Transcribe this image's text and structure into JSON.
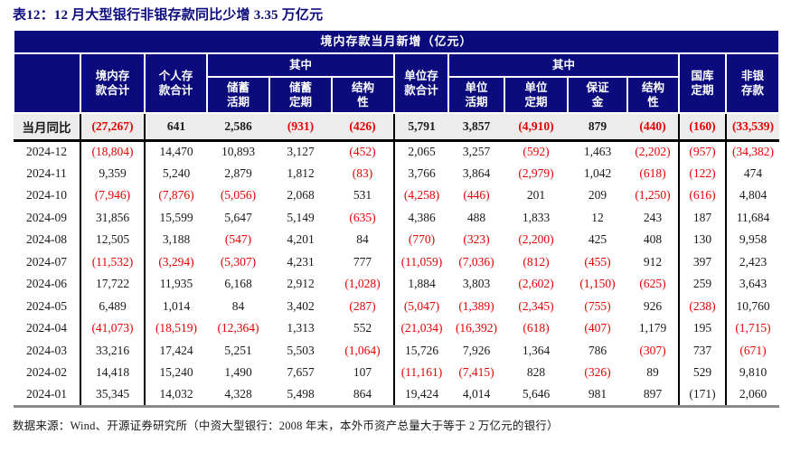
{
  "title": "表12：12 月大型银行非银存款同比少增 3.35 万亿元",
  "colors": {
    "header_navy": "#0b0b7e",
    "negative_red": "#e60000",
    "yoy_row_bg": "#ececec",
    "title_navy": "#0b0b7e",
    "bottom_border_gray": "#8c8c8c"
  },
  "table": {
    "band_title": "境内存款当月新增（亿元）",
    "header": {
      "domestic_total": "境内存\n款合计",
      "personal_total": "个人存\n款合计",
      "among_personal": "其中",
      "savings_demand": "储蓄\n活期",
      "savings_time": "储蓄\n定期",
      "structural_personal": "结构\n性",
      "corporate_total": "单位存\n款合计",
      "among_corporate": "其中",
      "corp_demand": "单位\n活期",
      "corp_time": "单位\n定期",
      "margin_deposit": "保证\n金",
      "structural_corp": "结构\n性",
      "treasury_time": "国库\n定期",
      "nonbank": "非银\n存款"
    },
    "yoy_row": {
      "label": "当月同比",
      "values": [
        "(27,267)",
        "641",
        "2,586",
        "(931)",
        "(426)",
        "5,791",
        "3,857",
        "(4,910)",
        "879",
        "(440)",
        "(160)",
        "(33,539)"
      ]
    },
    "rows": [
      {
        "label": "2024-12",
        "values": [
          "(18,804)",
          "14,470",
          "10,893",
          "3,127",
          "(452)",
          "2,065",
          "3,257",
          "(592)",
          "1,463",
          "(2,202)",
          "(957)",
          "(34,382)"
        ]
      },
      {
        "label": "2024-11",
        "values": [
          "9,359",
          "5,240",
          "2,879",
          "1,812",
          "(83)",
          "3,766",
          "3,864",
          "(2,979)",
          "1,042",
          "(618)",
          "(122)",
          "474"
        ]
      },
      {
        "label": "2024-10",
        "values": [
          "(7,946)",
          "(7,876)",
          "(5,056)",
          "2,068",
          "531",
          "(4,258)",
          "(446)",
          "201",
          "209",
          "(1,250)",
          "(616)",
          "4,804"
        ]
      },
      {
        "label": "2024-09",
        "values": [
          "31,856",
          "15,599",
          "5,647",
          "5,149",
          "(635)",
          "4,386",
          "488",
          "1,833",
          "12",
          "243",
          "187",
          "11,684"
        ]
      },
      {
        "label": "2024-08",
        "values": [
          "12,505",
          "3,188",
          "(547)",
          "4,201",
          "84",
          "(770)",
          "(323)",
          "(2,200)",
          "425",
          "408",
          "130",
          "9,958"
        ]
      },
      {
        "label": "2024-07",
        "values": [
          "(11,532)",
          "(3,294)",
          "(5,307)",
          "4,231",
          "777",
          "(11,059)",
          "(7,036)",
          "(812)",
          "(455)",
          "912",
          "397",
          "2,423"
        ]
      },
      {
        "label": "2024-06",
        "values": [
          "17,722",
          "11,935",
          "6,168",
          "2,912",
          "(1,028)",
          "1,884",
          "3,803",
          "(2,602)",
          "(1,150)",
          "(625)",
          "259",
          "3,643"
        ]
      },
      {
        "label": "2024-05",
        "values": [
          "6,489",
          "1,014",
          "84",
          "3,402",
          "(287)",
          "(5,047)",
          "(1,389)",
          "(2,345)",
          "(755)",
          "926",
          "(238)",
          "10,760"
        ]
      },
      {
        "label": "2024-04",
        "values": [
          "(41,073)",
          "(18,519)",
          "(12,364)",
          "1,313",
          "552",
          "(21,034)",
          "(16,392)",
          "(618)",
          "(407)",
          "1,179",
          "195",
          "(1,715)"
        ]
      },
      {
        "label": "2024-03",
        "values": [
          "33,216",
          "17,424",
          "5,251",
          "5,503",
          "(1,064)",
          "15,726",
          "7,926",
          "1,364",
          "786",
          "(307)",
          "737",
          "(671)"
        ]
      },
      {
        "label": "2024-02",
        "values": [
          "14,418",
          "15,240",
          "1,490",
          "7,657",
          "107",
          "(11,161)",
          "(7,415)",
          "828",
          "(326)",
          "89",
          "529",
          "9,810"
        ]
      },
      {
        "label": "2024-01",
        "values": [
          "35,345",
          "14,032",
          "4,328",
          "5,498",
          "864",
          "19,424",
          "4,014",
          "5,646",
          "981",
          "897",
          "(171)",
          "2,060"
        ]
      }
    ],
    "black_paren_cells": [
      {
        "row": "2024-01",
        "col": 10
      }
    ]
  },
  "footer": {
    "source": "数据来源：Wind、开源证券研究所（中资大型银行：2008 年末，本外币资产总量大于等于 2 万亿元的银行）"
  }
}
